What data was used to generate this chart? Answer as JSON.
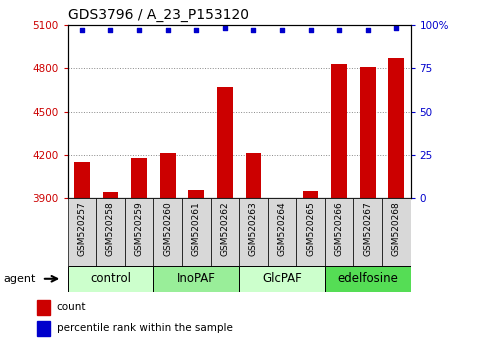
{
  "title": "GDS3796 / A_23_P153120",
  "samples": [
    "GSM520257",
    "GSM520258",
    "GSM520259",
    "GSM520260",
    "GSM520261",
    "GSM520262",
    "GSM520263",
    "GSM520264",
    "GSM520265",
    "GSM520266",
    "GSM520267",
    "GSM520268"
  ],
  "counts": [
    4150,
    3940,
    4180,
    4210,
    3960,
    4670,
    4210,
    3905,
    3950,
    4830,
    4810,
    4870
  ],
  "percentile_rank": [
    97,
    97,
    97,
    97,
    97,
    98,
    97,
    97,
    97,
    97,
    97,
    98
  ],
  "ylim_left": [
    3900,
    5100
  ],
  "ylim_right": [
    0,
    100
  ],
  "right_ticks": [
    0,
    25,
    50,
    75,
    100
  ],
  "right_ticklabels": [
    "0",
    "25",
    "50",
    "75",
    "100%"
  ],
  "left_ticks": [
    3900,
    4200,
    4500,
    4800,
    5100
  ],
  "groups": [
    {
      "label": "control",
      "start": 0,
      "end": 3,
      "color": "#ccffcc"
    },
    {
      "label": "InoPAF",
      "start": 3,
      "end": 6,
      "color": "#99ee99"
    },
    {
      "label": "GlcPAF",
      "start": 6,
      "end": 9,
      "color": "#ccffcc"
    },
    {
      "label": "edelfosine",
      "start": 9,
      "end": 12,
      "color": "#55dd55"
    }
  ],
  "bar_color": "#cc0000",
  "dot_color": "#0000cc",
  "bar_width": 0.55,
  "grid_color": "#888888",
  "sample_bg_color": "#d8d8d8",
  "plot_bg": "#ffffff",
  "left_label_color": "#cc0000",
  "right_label_color": "#0000cc",
  "legend_count_color": "#cc0000",
  "legend_pct_color": "#0000cc",
  "legend_count_label": "count",
  "legend_pct_label": "percentile rank within the sample",
  "x_tick_fontsize": 6.5,
  "title_fontsize": 10,
  "group_fontsize": 8.5,
  "axis_fontsize": 7.5
}
